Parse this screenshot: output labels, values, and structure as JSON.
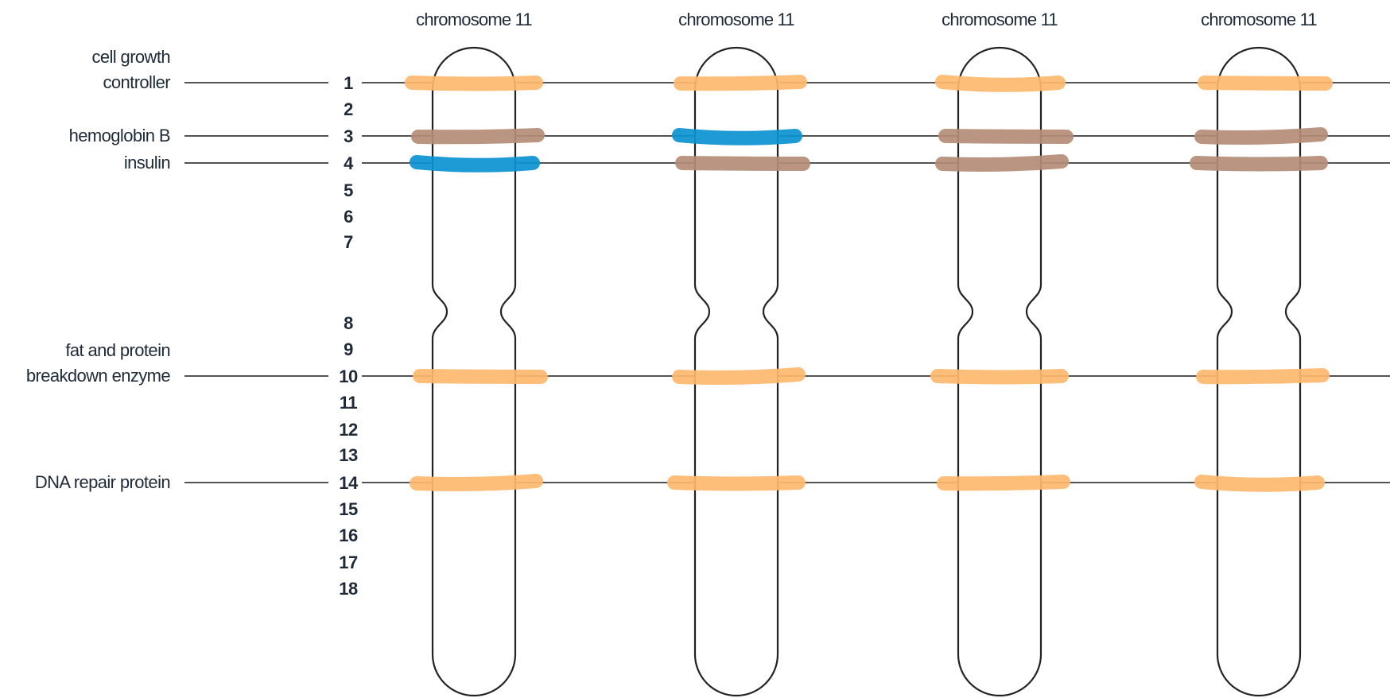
{
  "chromosome_title": "chromosome 11",
  "gene_labels": [
    {
      "lines": [
        "cell growth",
        "controller"
      ],
      "position": 1
    },
    {
      "lines": [
        "hemoglobin B"
      ],
      "position": 3
    },
    {
      "lines": [
        "insulin"
      ],
      "position": 4
    },
    {
      "lines": [
        "fat and protein",
        "breakdown enzyme"
      ],
      "position": 10
    },
    {
      "lines": [
        "DNA repair protein"
      ],
      "position": 14
    }
  ],
  "position_numbers": [
    "1",
    "2",
    "3",
    "4",
    "5",
    "6",
    "7",
    "8",
    "9",
    "10",
    "11",
    "12",
    "13",
    "14",
    "15",
    "16",
    "17",
    "18"
  ],
  "colors": {
    "orange": "#fdb86e",
    "brown": "#b48d77",
    "blue": "#0b93d0"
  },
  "chromosomes": [
    {
      "title": "chromosome 11",
      "bands": [
        {
          "position": 1,
          "color": "orange"
        },
        {
          "position": 3,
          "color": "brown"
        },
        {
          "position": 4,
          "color": "blue"
        },
        {
          "position": 10,
          "color": "orange"
        },
        {
          "position": 14,
          "color": "orange"
        }
      ]
    },
    {
      "title": "chromosome 11",
      "bands": [
        {
          "position": 1,
          "color": "orange"
        },
        {
          "position": 3,
          "color": "blue"
        },
        {
          "position": 4,
          "color": "brown"
        },
        {
          "position": 10,
          "color": "orange"
        },
        {
          "position": 14,
          "color": "orange"
        }
      ]
    },
    {
      "title": "chromosome 11",
      "bands": [
        {
          "position": 1,
          "color": "orange"
        },
        {
          "position": 3,
          "color": "brown"
        },
        {
          "position": 4,
          "color": "brown"
        },
        {
          "position": 10,
          "color": "orange"
        },
        {
          "position": 14,
          "color": "orange"
        }
      ]
    },
    {
      "title": "chromosome 11",
      "bands": [
        {
          "position": 1,
          "color": "orange"
        },
        {
          "position": 3,
          "color": "brown"
        },
        {
          "position": 4,
          "color": "brown"
        },
        {
          "position": 10,
          "color": "orange"
        },
        {
          "position": 14,
          "color": "orange"
        }
      ]
    }
  ]
}
